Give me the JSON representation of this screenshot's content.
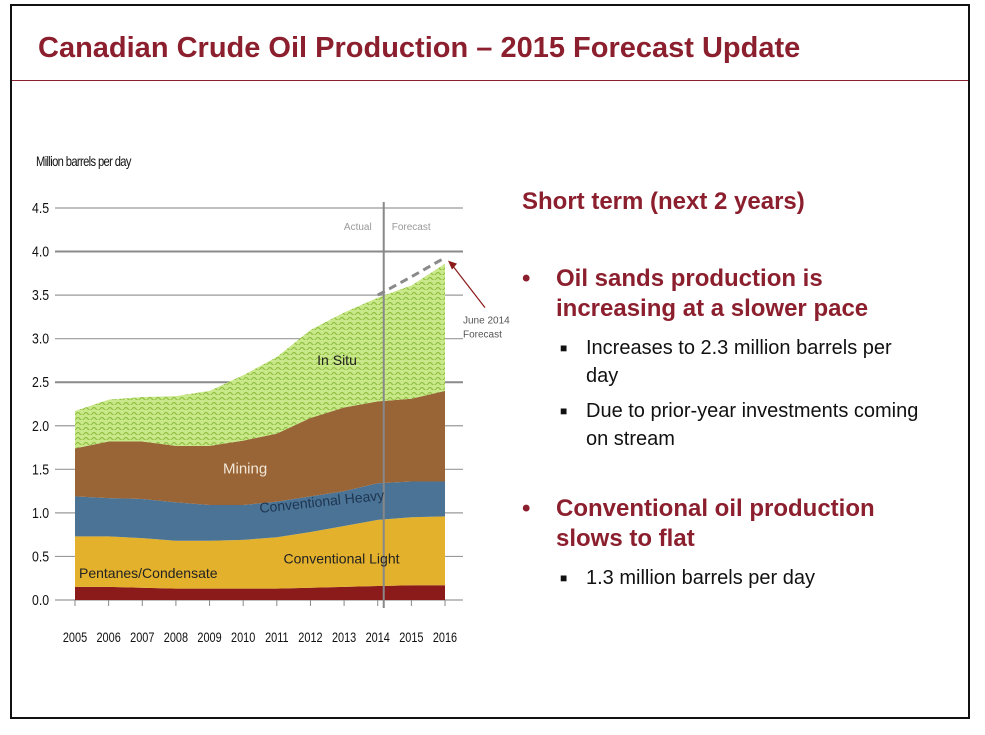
{
  "slide": {
    "title": "Canadian Crude Oil Production – 2015 Forecast Update"
  },
  "text": {
    "short_term": "Short term (next 2 years)",
    "bullets": [
      {
        "text": "Oil sands production is increasing at a slower pace",
        "subs": [
          "Increases to 2.3 million barrels per day",
          "Due to prior-year investments coming on stream"
        ]
      },
      {
        "text": "Conventional oil production slows to flat",
        "subs": [
          "1.3 million barrels per day"
        ]
      }
    ]
  },
  "colors": {
    "accent": "#8c1f2e",
    "pentanes": "#8b1a1a",
    "conv_light": "#e3b12c",
    "conv_heavy": "#4a7396",
    "mining": "#996536",
    "in_situ": "#bfe07a",
    "forecast_line": "#8a8a8a"
  },
  "chart_data": {
    "type": "area",
    "ylabel": "Million barrels per day",
    "ylim": [
      0,
      4.5
    ],
    "yticks": [
      "0.0",
      "0.5",
      "1.0",
      "1.5",
      "2.0",
      "2.5",
      "3.0",
      "3.5",
      "4.0",
      "4.5"
    ],
    "x": [
      "2005",
      "2006",
      "2007",
      "2008",
      "2009",
      "2010",
      "2011",
      "2012",
      "2013",
      "2014",
      "2015",
      "2016"
    ],
    "stacked": true,
    "series": [
      {
        "name": "Pentanes/Condensate",
        "values": [
          0.15,
          0.15,
          0.14,
          0.13,
          0.13,
          0.13,
          0.13,
          0.14,
          0.15,
          0.16,
          0.17,
          0.17
        ]
      },
      {
        "name": "Conventional Light",
        "values": [
          0.58,
          0.58,
          0.57,
          0.55,
          0.55,
          0.56,
          0.59,
          0.64,
          0.7,
          0.76,
          0.78,
          0.79
        ]
      },
      {
        "name": "Conventional Heavy",
        "values": [
          0.46,
          0.44,
          0.45,
          0.44,
          0.41,
          0.4,
          0.41,
          0.41,
          0.4,
          0.42,
          0.41,
          0.4
        ]
      },
      {
        "name": "Mining",
        "values": [
          0.55,
          0.65,
          0.66,
          0.65,
          0.68,
          0.74,
          0.78,
          0.9,
          0.96,
          0.94,
          0.95,
          1.04
        ]
      },
      {
        "name": "In Situ",
        "values": [
          0.43,
          0.48,
          0.51,
          0.57,
          0.63,
          0.75,
          0.88,
          1.01,
          1.09,
          1.19,
          1.3,
          1.46
        ]
      }
    ],
    "actual_forecast_split": "2014",
    "region_labels": {
      "actual": "Actual",
      "forecast": "Forecast"
    },
    "previous_forecast": {
      "name": "June 2014 Forecast",
      "x": [
        "2014",
        "2015",
        "2016"
      ],
      "values": [
        3.5,
        3.71,
        3.93
      ]
    },
    "grid": true,
    "legend": "labels on areas"
  }
}
